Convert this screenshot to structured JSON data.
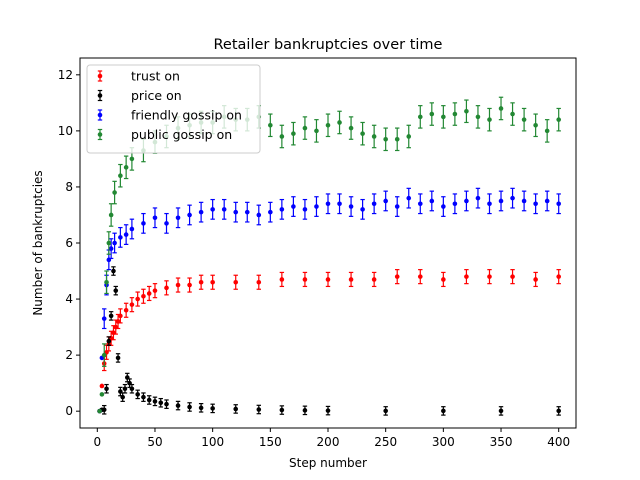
{
  "chart_data": {
    "type": "scatter",
    "title": "Retailer bankruptcies over time",
    "xlabel": "Step number",
    "ylabel": "Number of bankruptcies",
    "xlim": [
      -15,
      415
    ],
    "ylim": [
      -0.6,
      12.6
    ],
    "xticks": [
      0,
      50,
      100,
      150,
      200,
      250,
      300,
      350,
      400
    ],
    "yticks": [
      0,
      2,
      4,
      6,
      8,
      10,
      12
    ],
    "grid": false,
    "legend_position": "top-left",
    "error_bars": true,
    "series": [
      {
        "name": "trust on",
        "color": "#ff0000",
        "x": [
          2,
          4,
          6,
          8,
          10,
          12,
          14,
          16,
          18,
          20,
          25,
          30,
          35,
          40,
          45,
          50,
          60,
          70,
          80,
          90,
          100,
          120,
          140,
          160,
          180,
          200,
          220,
          240,
          260,
          280,
          300,
          320,
          340,
          360,
          380,
          400
        ],
        "y": [
          0.0,
          0.9,
          1.7,
          2.1,
          2.4,
          2.6,
          2.8,
          3.0,
          3.2,
          3.4,
          3.6,
          3.8,
          4.0,
          4.1,
          4.2,
          4.3,
          4.4,
          4.5,
          4.5,
          4.6,
          4.6,
          4.6,
          4.6,
          4.7,
          4.7,
          4.7,
          4.7,
          4.7,
          4.8,
          4.8,
          4.7,
          4.8,
          4.8,
          4.8,
          4.7,
          4.8
        ],
        "err": 0.25
      },
      {
        "name": "price on",
        "color": "#000000",
        "x": [
          2,
          4,
          6,
          8,
          10,
          12,
          14,
          16,
          18,
          20,
          22,
          24,
          26,
          28,
          30,
          35,
          40,
          45,
          50,
          55,
          60,
          70,
          80,
          90,
          100,
          120,
          140,
          160,
          180,
          200,
          250,
          300,
          350,
          400
        ],
        "y": [
          0.0,
          0.05,
          0.05,
          0.8,
          2.5,
          3.4,
          5.0,
          4.3,
          1.9,
          0.7,
          0.5,
          0.8,
          1.2,
          1.0,
          0.8,
          0.6,
          0.5,
          0.4,
          0.35,
          0.3,
          0.25,
          0.2,
          0.15,
          0.12,
          0.1,
          0.08,
          0.06,
          0.04,
          0.03,
          0.02,
          0.01,
          0.01,
          0.01,
          0.01
        ],
        "err": 0.15
      },
      {
        "name": "friendly gossip on",
        "color": "#0000ff",
        "x": [
          2,
          4,
          6,
          8,
          10,
          12,
          15,
          20,
          25,
          30,
          40,
          50,
          60,
          70,
          80,
          90,
          100,
          110,
          120,
          130,
          140,
          150,
          160,
          170,
          180,
          190,
          200,
          210,
          220,
          230,
          240,
          250,
          260,
          270,
          280,
          290,
          300,
          310,
          320,
          330,
          340,
          350,
          360,
          370,
          380,
          390,
          400
        ],
        "y": [
          0.0,
          1.9,
          3.3,
          4.5,
          5.4,
          5.8,
          6.0,
          6.2,
          6.3,
          6.5,
          6.7,
          6.9,
          6.7,
          6.9,
          7.0,
          7.1,
          7.2,
          7.2,
          7.1,
          7.1,
          7.0,
          7.1,
          7.2,
          7.3,
          7.2,
          7.3,
          7.4,
          7.4,
          7.3,
          7.2,
          7.4,
          7.5,
          7.3,
          7.6,
          7.4,
          7.5,
          7.3,
          7.4,
          7.5,
          7.6,
          7.4,
          7.5,
          7.6,
          7.5,
          7.4,
          7.5,
          7.4
        ],
        "err": 0.35
      },
      {
        "name": "public gossip on",
        "color": "#228833",
        "x": [
          2,
          4,
          6,
          8,
          10,
          12,
          15,
          20,
          25,
          30,
          40,
          50,
          60,
          70,
          80,
          90,
          100,
          110,
          120,
          130,
          140,
          150,
          160,
          170,
          180,
          190,
          200,
          210,
          220,
          230,
          240,
          250,
          260,
          270,
          280,
          290,
          300,
          310,
          320,
          330,
          340,
          350,
          360,
          370,
          380,
          390,
          400
        ],
        "y": [
          0.0,
          0.6,
          2.0,
          4.6,
          6.0,
          7.0,
          7.8,
          8.4,
          8.7,
          9.0,
          9.3,
          9.6,
          9.8,
          10.1,
          10.2,
          10.3,
          10.3,
          10.5,
          10.4,
          10.4,
          10.5,
          10.2,
          9.8,
          9.9,
          10.1,
          10.0,
          10.2,
          10.3,
          10.1,
          9.9,
          9.8,
          9.7,
          9.7,
          9.8,
          10.5,
          10.6,
          10.5,
          10.6,
          10.7,
          10.5,
          10.4,
          10.8,
          10.6,
          10.4,
          10.2,
          10.0,
          10.4
        ],
        "err": 0.4
      }
    ]
  }
}
